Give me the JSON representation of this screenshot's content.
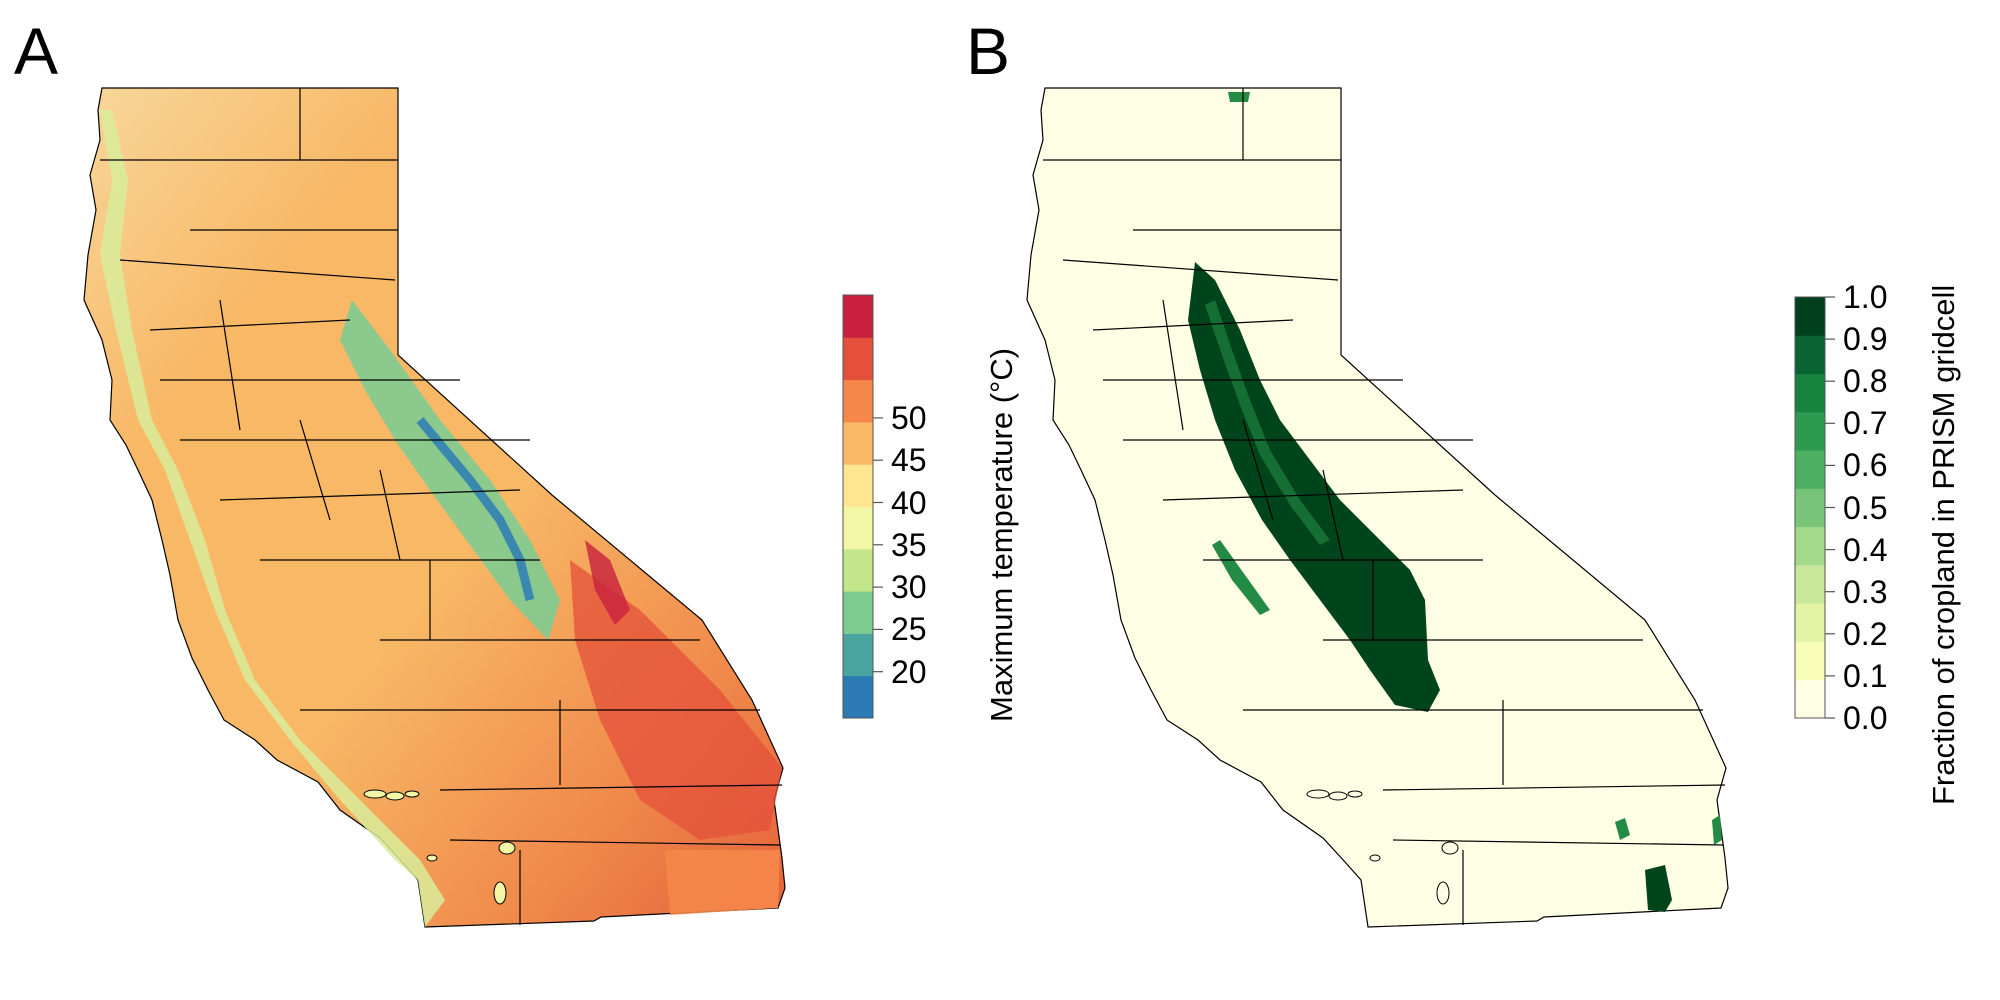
{
  "panels": [
    {
      "letter": "A",
      "legend": {
        "title": "Maximum temperature (°C)",
        "ticks": [
          "20",
          "25",
          "30",
          "35",
          "40",
          "45",
          "50"
        ],
        "colors": [
          "#2c7bb6",
          "#4aa4a0",
          "#7ecb91",
          "#c4e68a",
          "#f1f7a4",
          "#fde68f",
          "#f8b866",
          "#f5874a",
          "#e4503a",
          "#c8203d"
        ]
      }
    },
    {
      "letter": "B",
      "legend": {
        "title": "Fraction of cropland in PRISM gridcell",
        "ticks": [
          "0.0",
          "0.1",
          "0.2",
          "0.3",
          "0.4",
          "0.5",
          "0.6",
          "0.7",
          "0.8",
          "0.9",
          "1.0"
        ],
        "colors": [
          "#ffffe5",
          "#f7fcb9",
          "#e4f4a5",
          "#c7e89b",
          "#a3d98a",
          "#78c57a",
          "#4cb062",
          "#2e9950",
          "#18823f",
          "#096333",
          "#00401c"
        ]
      }
    }
  ]
}
